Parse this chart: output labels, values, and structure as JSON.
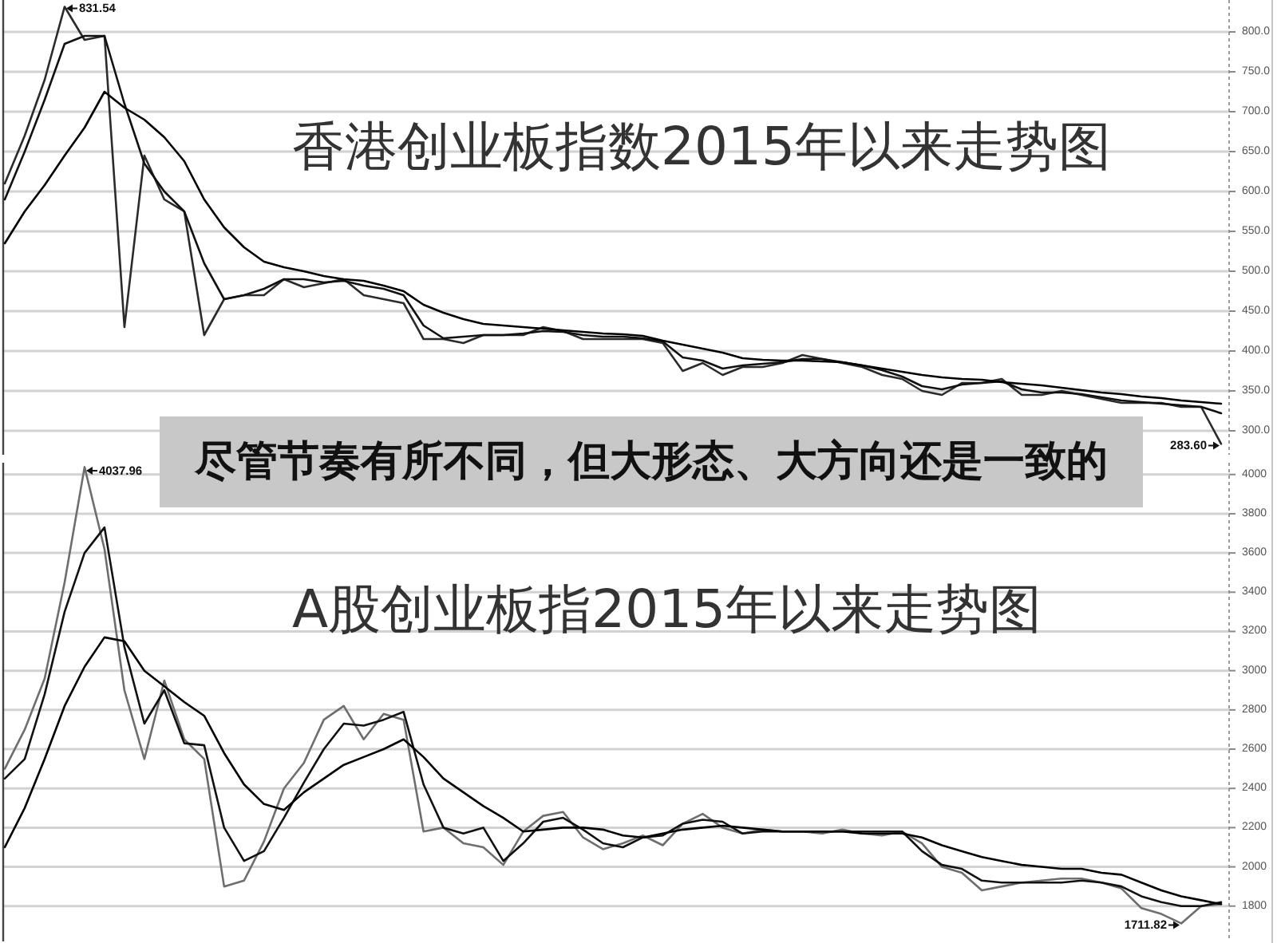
{
  "chart_data": [
    {
      "type": "line",
      "title": "香港创业板指数2015年以来走势图",
      "categories": [
        null,
        null,
        null,
        null,
        null,
        null,
        null,
        null,
        null,
        null,
        null,
        null,
        null,
        null,
        null,
        null,
        null,
        null,
        null,
        null,
        null,
        null,
        null,
        null,
        null,
        null,
        null,
        null,
        null,
        null,
        null,
        null,
        null,
        null,
        null,
        null,
        null,
        null,
        null,
        null,
        null,
        null,
        null,
        null,
        null,
        null,
        null,
        null,
        null,
        null,
        null,
        null,
        null,
        null,
        null,
        null,
        null,
        null,
        null,
        null,
        null,
        null
      ],
      "series": [
        {
          "color": "#2b2b2b",
          "values": [
            610,
            670,
            740,
            831.54,
            790,
            795,
            430,
            645,
            590,
            575,
            420,
            465,
            470,
            470,
            490,
            480,
            485,
            490,
            470,
            465,
            460,
            415,
            415,
            410,
            420,
            420,
            420,
            430,
            425,
            415,
            415,
            415,
            415,
            410,
            375,
            385,
            370,
            380,
            380,
            385,
            395,
            390,
            385,
            380,
            370,
            365,
            350,
            345,
            360,
            360,
            365,
            345,
            345,
            350,
            345,
            340,
            335,
            335,
            335,
            330,
            330,
            283.6
          ],
          "value_labels": [
            null,
            null,
            null,
            "831.54",
            null,
            null,
            null,
            null,
            null,
            null,
            null,
            null,
            null,
            null,
            null,
            null,
            null,
            null,
            null,
            null,
            null,
            null,
            null,
            null,
            null,
            null,
            null,
            null,
            null,
            null,
            null,
            null,
            null,
            null,
            null,
            null,
            null,
            null,
            null,
            null,
            null,
            null,
            null,
            null,
            null,
            null,
            null,
            null,
            null,
            null,
            null,
            null,
            null,
            null,
            null,
            null,
            null,
            null,
            null,
            null,
            null,
            "283.60"
          ]
        },
        {
          "color": "#111111",
          "values": [
            590,
            650,
            715,
            785,
            795,
            795,
            710,
            635,
            600,
            575,
            510,
            465,
            470,
            478,
            490,
            490,
            486,
            488,
            482,
            478,
            470,
            432,
            416,
            418,
            420,
            420,
            422,
            425,
            424,
            420,
            418,
            418,
            416,
            412,
            392,
            388,
            378,
            382,
            384,
            386,
            390,
            390,
            386,
            382,
            376,
            368,
            356,
            352,
            358,
            360,
            362,
            352,
            348,
            348,
            346,
            342,
            338,
            336,
            334,
            332,
            330,
            322
          ]
        },
        {
          "color": "#000000",
          "values": [
            535,
            575,
            608,
            645,
            680,
            725,
            705,
            690,
            668,
            638,
            590,
            555,
            530,
            512,
            505,
            500,
            494,
            490,
            488,
            482,
            475,
            458,
            448,
            440,
            434,
            432,
            430,
            428,
            426,
            424,
            422,
            421,
            419,
            413,
            408,
            403,
            398,
            391,
            389,
            388,
            388,
            387,
            386,
            382,
            378,
            374,
            370,
            367,
            365,
            364,
            361,
            359,
            357,
            354,
            351,
            348,
            346,
            343,
            341,
            338,
            336,
            334
          ]
        }
      ],
      "ylim": [
        270,
        840
      ],
      "yticks": [
        {
          "value": 300,
          "label": "300.0"
        },
        {
          "value": 350,
          "label": "350.0"
        },
        {
          "value": 400,
          "label": "400.0"
        },
        {
          "value": 450,
          "label": "450.0"
        },
        {
          "value": 500,
          "label": "500.0"
        },
        {
          "value": 550,
          "label": "550.0"
        },
        {
          "value": 600,
          "label": "600.0"
        },
        {
          "value": 650,
          "label": "650.0"
        },
        {
          "value": 700,
          "label": "700.0"
        },
        {
          "value": 750,
          "label": "750.0"
        },
        {
          "value": 800,
          "label": "800.0"
        }
      ],
      "grid": "y",
      "annotations": [
        "尽管节奏有所不同，但大形态、大方向还是一致的"
      ]
    },
    {
      "type": "line",
      "title": "A股创业板指2015年以来走势图",
      "categories": [
        null,
        null,
        null,
        null,
        null,
        null,
        null,
        null,
        null,
        null,
        null,
        null,
        null,
        null,
        null,
        null,
        null,
        null,
        null,
        null,
        null,
        null,
        null,
        null,
        null,
        null,
        null,
        null,
        null,
        null,
        null,
        null,
        null,
        null,
        null,
        null,
        null,
        null,
        null,
        null,
        null,
        null,
        null,
        null,
        null,
        null,
        null,
        null,
        null,
        null,
        null,
        null,
        null,
        null,
        null,
        null,
        null,
        null,
        null,
        null,
        null,
        null
      ],
      "series": [
        {
          "color": "#6e6e6e",
          "values": [
            2500,
            2700,
            2960,
            3450,
            4037.96,
            3620,
            2900,
            2550,
            2950,
            2650,
            2550,
            1900,
            1930,
            2130,
            2400,
            2530,
            2750,
            2820,
            2650,
            2780,
            2750,
            2180,
            2200,
            2120,
            2100,
            2010,
            2180,
            2260,
            2280,
            2150,
            2090,
            2120,
            2160,
            2110,
            2220,
            2270,
            2200,
            2170,
            2190,
            2180,
            2180,
            2170,
            2190,
            2170,
            2160,
            2180,
            2120,
            2000,
            1970,
            1880,
            1900,
            1920,
            1930,
            1940,
            1940,
            1920,
            1890,
            1790,
            1760,
            1711.82,
            1800,
            1810
          ],
          "value_labels": [
            null,
            null,
            null,
            null,
            "4037.96",
            null,
            null,
            null,
            null,
            null,
            null,
            null,
            null,
            null,
            null,
            null,
            null,
            null,
            null,
            null,
            null,
            null,
            null,
            null,
            null,
            null,
            null,
            null,
            null,
            null,
            null,
            null,
            null,
            null,
            null,
            null,
            null,
            null,
            null,
            null,
            null,
            null,
            null,
            null,
            null,
            null,
            null,
            null,
            null,
            null,
            null,
            null,
            null,
            null,
            null,
            null,
            null,
            null,
            null,
            "1711.82",
            null,
            null
          ]
        },
        {
          "color": "#111111",
          "values": [
            2450,
            2550,
            2880,
            3300,
            3600,
            3730,
            3120,
            2730,
            2900,
            2630,
            2620,
            2200,
            2030,
            2080,
            2250,
            2430,
            2600,
            2730,
            2720,
            2750,
            2790,
            2420,
            2200,
            2170,
            2200,
            2030,
            2120,
            2230,
            2250,
            2190,
            2120,
            2100,
            2150,
            2160,
            2220,
            2240,
            2230,
            2170,
            2180,
            2180,
            2180,
            2180,
            2180,
            2180,
            2180,
            2180,
            2080,
            2010,
            1990,
            1930,
            1920,
            1920,
            1920,
            1920,
            1930,
            1920,
            1900,
            1850,
            1820,
            1800,
            1800,
            1820
          ]
        },
        {
          "color": "#000000",
          "values": [
            2100,
            2300,
            2550,
            2820,
            3020,
            3170,
            3150,
            3000,
            2920,
            2840,
            2770,
            2580,
            2420,
            2320,
            2290,
            2380,
            2450,
            2520,
            2560,
            2600,
            2650,
            2560,
            2450,
            2380,
            2310,
            2250,
            2180,
            2190,
            2200,
            2200,
            2190,
            2160,
            2150,
            2170,
            2190,
            2200,
            2210,
            2200,
            2190,
            2180,
            2180,
            2180,
            2180,
            2170,
            2170,
            2170,
            2150,
            2110,
            2080,
            2050,
            2030,
            2010,
            2000,
            1990,
            1990,
            1970,
            1960,
            1920,
            1880,
            1850,
            1830,
            1810
          ]
        }
      ],
      "ylim": [
        1620,
        4060
      ],
      "yticks": [
        1800,
        2000,
        2200,
        2400,
        2600,
        2800,
        3000,
        3200,
        3400,
        3600,
        3800,
        4000
      ],
      "grid": "y"
    }
  ]
}
